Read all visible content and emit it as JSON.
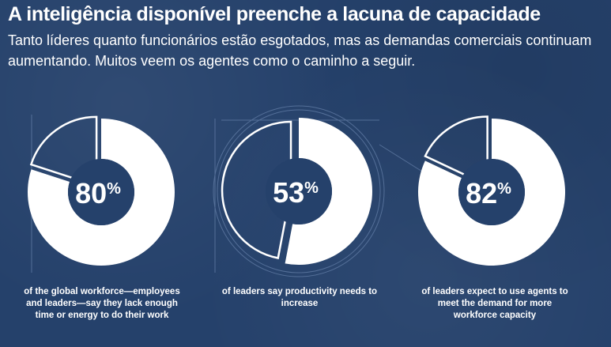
{
  "header": {
    "title": "A inteligência disponível preenche a lacuna de capacidade",
    "subtitle": "Tanto líderes quanto funcionários estão esgotados, mas as demandas comerciais continuam aumentando. Muitos veem os agentes como o caminho a seguir."
  },
  "colors": {
    "background": "#25416b",
    "fill": "#ffffff",
    "guide_lines": "#5f7aa3"
  },
  "chart_data": [
    {
      "type": "pie",
      "variant": "donut",
      "value": 80,
      "remainder": 20,
      "label": "80%",
      "caption": "of the global workforce—employees and leaders—say they lack enough time or energy to do their work"
    },
    {
      "type": "pie",
      "variant": "donut",
      "value": 53,
      "remainder": 47,
      "label": "53%",
      "caption": "of leaders say productivity needs to increase"
    },
    {
      "type": "pie",
      "variant": "donut",
      "value": 82,
      "remainder": 18,
      "label": "82%",
      "caption": "of leaders expect to use agents to meet the demand for more workforce capacity"
    }
  ]
}
